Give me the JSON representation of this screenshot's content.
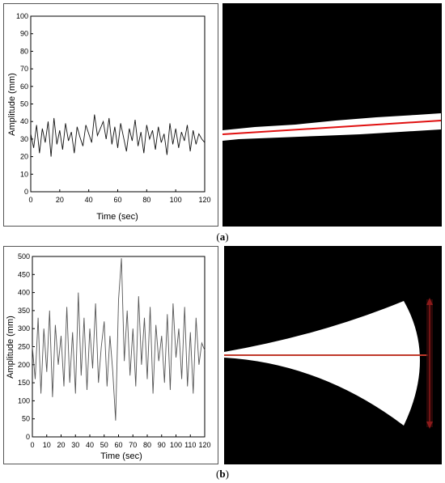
{
  "chart_data": [
    {
      "type": "line",
      "xlabel": "Time (sec)",
      "ylabel": "Amplitude (mm)",
      "xlim": [
        0,
        120
      ],
      "ylim": [
        0,
        100
      ],
      "xticks": [
        0,
        20,
        40,
        60,
        80,
        100,
        120
      ],
      "yticks": [
        0,
        10,
        20,
        30,
        40,
        50,
        60,
        70,
        80,
        90,
        100
      ],
      "line_color": "#111111",
      "series": [
        {
          "x": [
            0,
            2,
            4,
            6,
            8,
            10,
            12,
            14,
            16,
            18,
            20,
            22,
            24,
            26,
            28,
            30,
            32,
            34,
            36,
            38,
            40,
            42,
            44,
            46,
            48,
            50,
            52,
            54,
            56,
            58,
            60,
            62,
            64,
            66,
            68,
            70,
            72,
            74,
            76,
            78,
            80,
            82,
            84,
            86,
            88,
            90,
            92,
            94,
            96,
            98,
            100,
            102,
            104,
            106,
            108,
            110,
            112,
            114,
            116,
            118,
            120
          ],
          "y": [
            33,
            25,
            38,
            22,
            36,
            28,
            40,
            20,
            42,
            27,
            35,
            24,
            39,
            29,
            34,
            22,
            37,
            31,
            26,
            38,
            33,
            28,
            44,
            32,
            36,
            40,
            30,
            42,
            27,
            37,
            25,
            39,
            31,
            23,
            36,
            29,
            41,
            26,
            34,
            22,
            38,
            30,
            35,
            24,
            37,
            28,
            33,
            21,
            39,
            27,
            36,
            25,
            34,
            29,
            38,
            23,
            35,
            27,
            33,
            30,
            28
          ]
        }
      ]
    },
    {
      "type": "line",
      "xlabel": "Time (sec)",
      "ylabel": "Amplitude (mm)",
      "xlim": [
        0,
        120
      ],
      "ylim": [
        0,
        500
      ],
      "xticks": [
        0,
        10,
        20,
        30,
        40,
        50,
        60,
        70,
        80,
        90,
        100,
        110,
        120
      ],
      "yticks": [
        0,
        50,
        100,
        150,
        200,
        250,
        300,
        350,
        400,
        450,
        500
      ],
      "line_color": "#555555",
      "series": [
        {
          "x": [
            0,
            2,
            4,
            6,
            8,
            10,
            12,
            14,
            16,
            18,
            20,
            22,
            24,
            26,
            28,
            30,
            32,
            34,
            36,
            38,
            40,
            42,
            44,
            46,
            48,
            50,
            52,
            54,
            56,
            58,
            60,
            62,
            64,
            66,
            68,
            70,
            72,
            74,
            76,
            78,
            80,
            82,
            84,
            86,
            88,
            90,
            92,
            94,
            96,
            98,
            100,
            102,
            104,
            106,
            108,
            110,
            112,
            114,
            116,
            118,
            120
          ],
          "y": [
            250,
            160,
            330,
            120,
            300,
            180,
            350,
            110,
            310,
            200,
            280,
            140,
            360,
            150,
            290,
            120,
            400,
            170,
            330,
            130,
            300,
            190,
            370,
            150,
            250,
            320,
            140,
            280,
            180,
            45,
            380,
            495,
            210,
            350,
            170,
            300,
            140,
            390,
            200,
            330,
            160,
            360,
            120,
            310,
            210,
            280,
            150,
            340,
            130,
            370,
            220,
            300,
            160,
            360,
            140,
            290,
            120,
            330,
            200,
            260,
            240
          ]
        }
      ]
    }
  ],
  "captions": {
    "a": "a",
    "b": "b"
  },
  "images": {
    "a": {
      "background": "#000000",
      "band_color": "#ffffff",
      "line_color": "#e01010"
    },
    "b": {
      "background": "#000000",
      "shape_color": "#ffffff",
      "line_color": "#c0392b",
      "arrow_color": "#8b1a1a"
    }
  }
}
